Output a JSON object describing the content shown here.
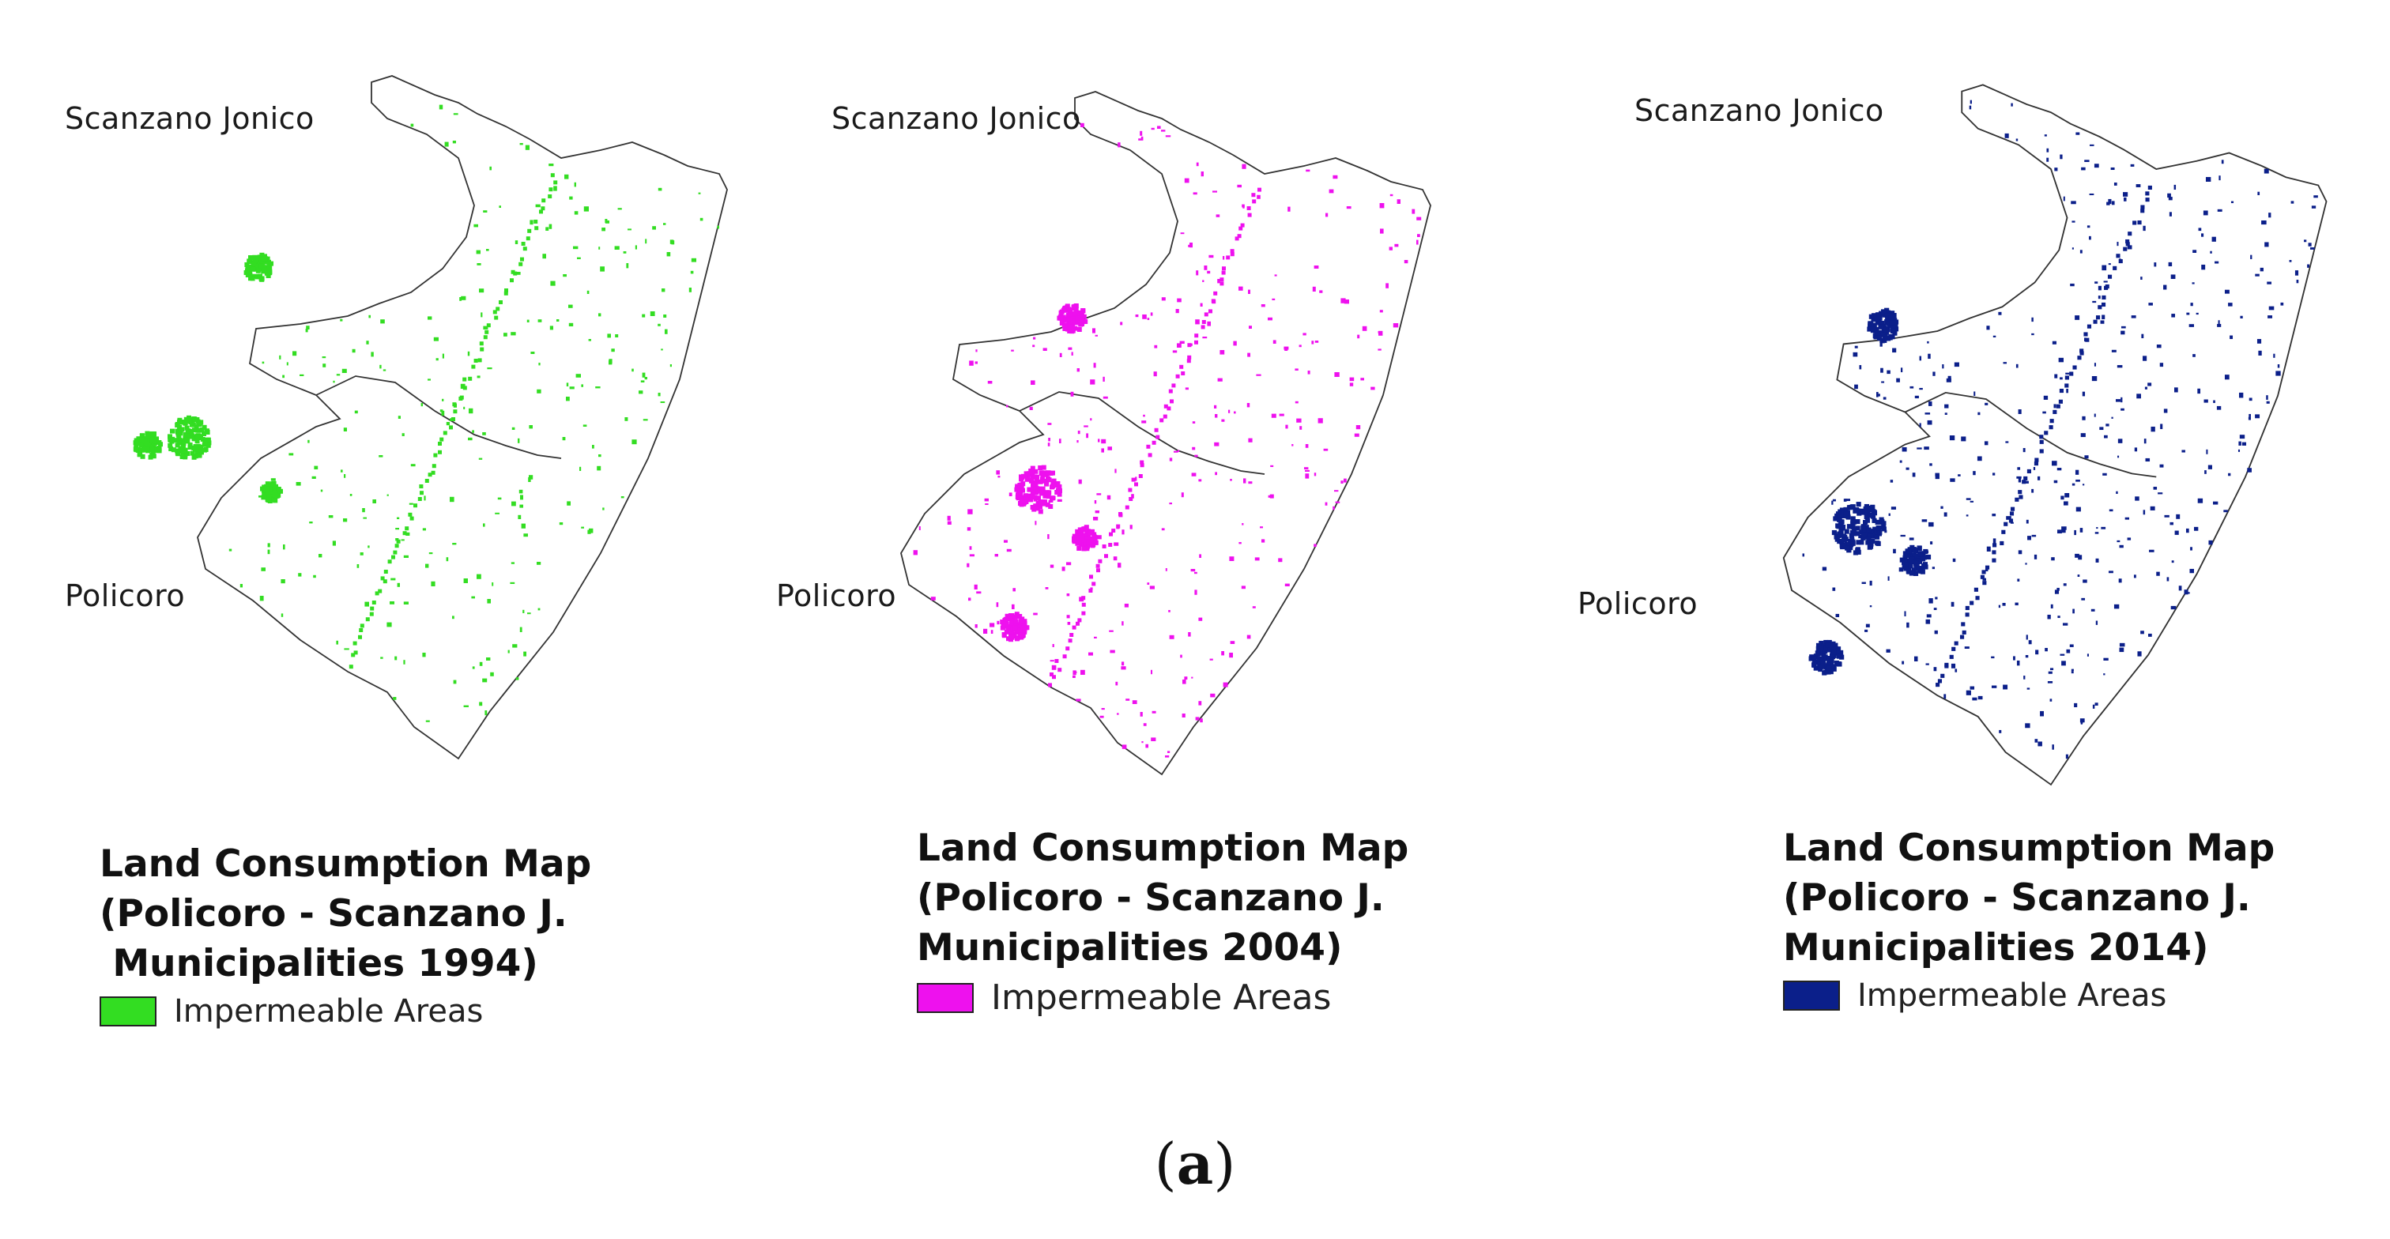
{
  "panels": [
    {
      "year": "1994",
      "place_north": "Scanzano Jonico",
      "place_south": "Policoro",
      "legend_title_lines": [
        "Land Consumption Map",
        "(Policoro - Scanzano J.",
        " Municipalities 1994)"
      ],
      "legend_label": "Impermeable Areas",
      "color": "#33dd22"
    },
    {
      "year": "2004",
      "place_north": "Scanzano Jonico",
      "place_south": "Policoro",
      "legend_title_lines": [
        "Land Consumption Map",
        "(Policoro - Scanzano J.",
        "Municipalities 2004)"
      ],
      "legend_label": "Impermeable Areas",
      "color": "#ee11ee"
    },
    {
      "year": "2014",
      "place_north": "Scanzano Jonico",
      "place_south": "Policoro",
      "legend_title_lines": [
        "Land Consumption Map",
        "(Policoro - Scanzano J.",
        "Municipalities 2014)"
      ],
      "legend_label": "Impermeable Areas",
      "color": "#0b1f8a"
    }
  ],
  "caption": {
    "open": "(",
    "letter": "a",
    "close": ")"
  }
}
